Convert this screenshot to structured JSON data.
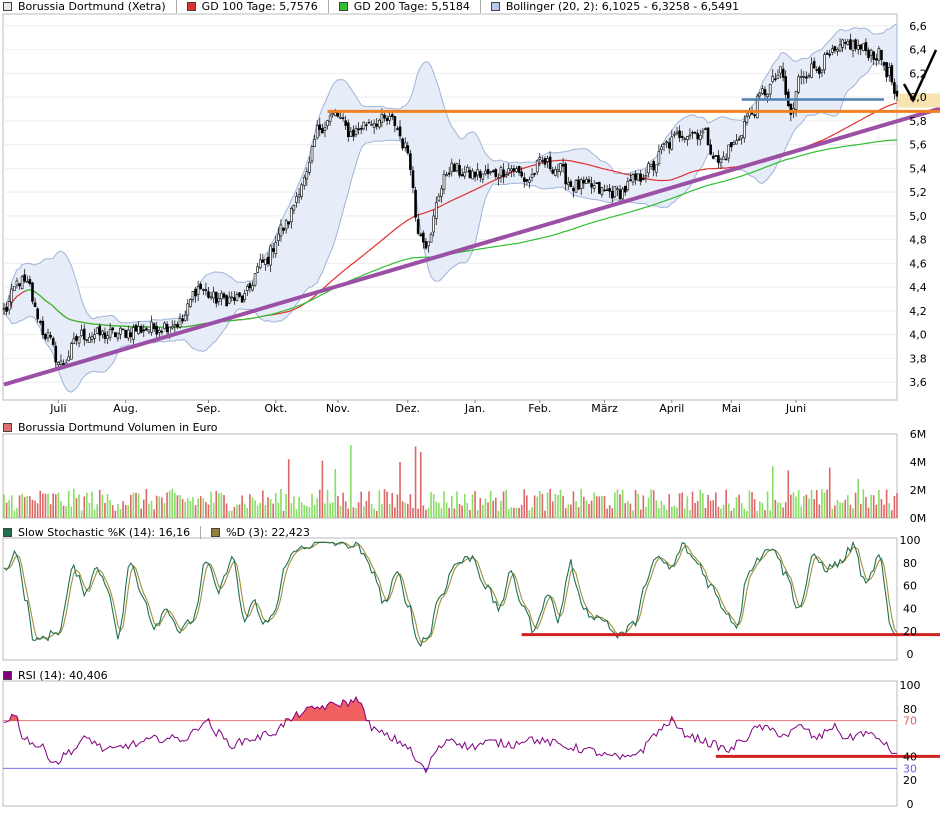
{
  "main_legend": [
    {
      "text": "Borussia Dortmund (Xetra)",
      "color": "#e8e8e8"
    },
    {
      "text": "GD 100 Tage: 5,7576",
      "color": "#e03030"
    },
    {
      "text": "GD 200 Tage: 5,5184",
      "color": "#30c030"
    },
    {
      "text": "Bollinger (20, 2): 6,1025 - 6,3258 - 6,5491",
      "color": "#b8c8e8"
    }
  ],
  "volume_legend": {
    "text": "Borussia Dortmund Volumen in Euro",
    "color": "#e07070"
  },
  "stoch_legend": [
    {
      "text": "Slow Stochastic %K (14): 16,16",
      "color": "#207050"
    },
    {
      "text": "%D (3): 22,423",
      "color": "#908040"
    }
  ],
  "rsi_legend": {
    "text": "RSI (14): 40,406",
    "color": "#800080"
  },
  "chart_data": [
    {
      "type": "candlestick",
      "title": "Borussia Dortmund (Xetra)",
      "x_ticks": [
        "Juli",
        "Aug.",
        "Sep.",
        "Okt.",
        "Nov.",
        "Dez.",
        "Jan.",
        "Feb.",
        "März",
        "April",
        "Mai",
        "Juni"
      ],
      "y_ticks": [
        "3,6",
        "3,8",
        "4,0",
        "4,2",
        "4,4",
        "4,6",
        "4,8",
        "5,0",
        "5,2",
        "5,4",
        "5,6",
        "5,8",
        "6,0",
        "6,2",
        "6,4",
        "6,6"
      ],
      "ylim": [
        3.45,
        6.7
      ],
      "price_anchors": [
        [
          0,
          4.2
        ],
        [
          6,
          4.45
        ],
        [
          10,
          4.4
        ],
        [
          12,
          4.2
        ],
        [
          16,
          4.0
        ],
        [
          22,
          3.75
        ],
        [
          30,
          4.0
        ],
        [
          40,
          4.0
        ],
        [
          55,
          4.05
        ],
        [
          68,
          4.1
        ],
        [
          75,
          4.4
        ],
        [
          82,
          4.3
        ],
        [
          92,
          4.3
        ],
        [
          100,
          4.6
        ],
        [
          108,
          4.9
        ],
        [
          116,
          5.3
        ],
        [
          122,
          5.75
        ],
        [
          128,
          5.85
        ],
        [
          134,
          5.7
        ],
        [
          142,
          5.8
        ],
        [
          150,
          5.8
        ],
        [
          156,
          5.55
        ],
        [
          160,
          4.9
        ],
        [
          164,
          4.75
        ],
        [
          168,
          5.2
        ],
        [
          172,
          5.4
        ],
        [
          180,
          5.35
        ],
        [
          188,
          5.35
        ],
        [
          196,
          5.4
        ],
        [
          202,
          5.3
        ],
        [
          208,
          5.45
        ],
        [
          214,
          5.4
        ],
        [
          220,
          5.25
        ],
        [
          226,
          5.25
        ],
        [
          232,
          5.2
        ],
        [
          238,
          5.2
        ],
        [
          244,
          5.3
        ],
        [
          250,
          5.4
        ],
        [
          256,
          5.6
        ],
        [
          262,
          5.7
        ],
        [
          270,
          5.7
        ],
        [
          276,
          5.45
        ],
        [
          282,
          5.6
        ],
        [
          288,
          5.85
        ],
        [
          294,
          6.05
        ],
        [
          300,
          6.2
        ],
        [
          304,
          5.85
        ],
        [
          308,
          6.2
        ],
        [
          314,
          6.25
        ],
        [
          320,
          6.35
        ],
        [
          326,
          6.45
        ],
        [
          332,
          6.4
        ],
        [
          338,
          6.35
        ],
        [
          342,
          6.2
        ],
        [
          345,
          5.95
        ]
      ],
      "bollinger": {
        "period": 20,
        "k": 2,
        "lower": 6.1025,
        "middle": 6.3258,
        "upper": 6.5491
      },
      "sma100_last": 5.7576,
      "sma200_last": 5.5184,
      "trendline": {
        "from": [
          0,
          3.58
        ],
        "to": [
          345,
          5.82
        ],
        "color": "#9b4fa5"
      },
      "horizontal_lines": [
        {
          "y": 5.88,
          "color": "#f08020",
          "from_index": 125,
          "to_index": 345
        },
        {
          "y": 5.98,
          "color": "#5080b0",
          "from_index": 285,
          "to_index": 340
        }
      ],
      "check_mark_color": "#000000"
    },
    {
      "type": "bar",
      "title": "Borussia Dortmund Volumen in Euro",
      "y_ticks": [
        "0M",
        "2M",
        "4M",
        "6M"
      ],
      "ylim": [
        0,
        6
      ],
      "up_color": "#88dd66",
      "down_color": "#dd6666",
      "spikes": [
        [
          110,
          4.2
        ],
        [
          123,
          4.1
        ],
        [
          128,
          3.5
        ],
        [
          134,
          5.2
        ],
        [
          153,
          4.0
        ],
        [
          159,
          5.1
        ],
        [
          161,
          4.7
        ],
        [
          297,
          3.7
        ],
        [
          303,
          3.4
        ],
        [
          319,
          3.6
        ],
        [
          330,
          2.8
        ]
      ]
    },
    {
      "type": "line",
      "title": "Slow Stochastic",
      "series": [
        {
          "name": "Slow Stochastic %K (14)",
          "last": 16.16,
          "color": "#207050"
        },
        {
          "name": "%D (3)",
          "last": 22.423,
          "color": "#a09040"
        }
      ],
      "y_ticks": [
        "0",
        "20",
        "40",
        "60",
        "80",
        "100"
      ],
      "ylim": [
        0,
        100
      ],
      "anchors": [
        [
          0,
          75
        ],
        [
          5,
          90
        ],
        [
          8,
          50
        ],
        [
          12,
          10
        ],
        [
          16,
          15
        ],
        [
          21,
          20
        ],
        [
          27,
          75
        ],
        [
          31,
          55
        ],
        [
          36,
          75
        ],
        [
          40,
          60
        ],
        [
          44,
          15
        ],
        [
          49,
          80
        ],
        [
          53,
          55
        ],
        [
          58,
          25
        ],
        [
          63,
          40
        ],
        [
          68,
          20
        ],
        [
          73,
          30
        ],
        [
          78,
          80
        ],
        [
          83,
          55
        ],
        [
          88,
          85
        ],
        [
          93,
          30
        ],
        [
          97,
          45
        ],
        [
          100,
          25
        ],
        [
          104,
          35
        ],
        [
          110,
          85
        ],
        [
          116,
          95
        ],
        [
          124,
          98
        ],
        [
          130,
          97
        ],
        [
          136,
          95
        ],
        [
          142,
          75
        ],
        [
          147,
          45
        ],
        [
          152,
          70
        ],
        [
          156,
          45
        ],
        [
          160,
          10
        ],
        [
          164,
          15
        ],
        [
          168,
          50
        ],
        [
          175,
          80
        ],
        [
          181,
          85
        ],
        [
          186,
          60
        ],
        [
          191,
          40
        ],
        [
          196,
          70
        ],
        [
          200,
          45
        ],
        [
          205,
          20
        ],
        [
          210,
          55
        ],
        [
          214,
          30
        ],
        [
          219,
          80
        ],
        [
          222,
          50
        ],
        [
          226,
          35
        ],
        [
          232,
          30
        ],
        [
          237,
          15
        ],
        [
          243,
          25
        ],
        [
          248,
          60
        ],
        [
          252,
          85
        ],
        [
          258,
          75
        ],
        [
          262,
          95
        ],
        [
          268,
          80
        ],
        [
          273,
          60
        ],
        [
          278,
          40
        ],
        [
          283,
          25
        ],
        [
          288,
          75
        ],
        [
          292,
          85
        ],
        [
          297,
          95
        ],
        [
          302,
          70
        ],
        [
          307,
          40
        ],
        [
          313,
          85
        ],
        [
          318,
          75
        ],
        [
          323,
          80
        ],
        [
          328,
          95
        ],
        [
          333,
          60
        ],
        [
          338,
          85
        ],
        [
          343,
          20
        ],
        [
          345,
          16
        ]
      ],
      "support_line": {
        "y": 17,
        "color": "#d02020",
        "from_index": 200
      }
    },
    {
      "type": "line",
      "title": "RSI (14)",
      "series": [
        {
          "name": "RSI (14)",
          "last": 40.406,
          "color": "#800080"
        }
      ],
      "y_ticks": [
        "0",
        "20",
        "30",
        "40",
        "70",
        "80",
        "100"
      ],
      "ylim": [
        0,
        100
      ],
      "reference_lines": [
        {
          "y": 70,
          "color": "#e06060"
        },
        {
          "y": 30,
          "color": "#6060e0"
        }
      ],
      "overbought_fill": "#f06060",
      "oversold_fill": "#6060e0",
      "anchors": [
        [
          0,
          70
        ],
        [
          4,
          75
        ],
        [
          8,
          55
        ],
        [
          14,
          48
        ],
        [
          20,
          35
        ],
        [
          26,
          45
        ],
        [
          32,
          55
        ],
        [
          40,
          45
        ],
        [
          50,
          50
        ],
        [
          60,
          55
        ],
        [
          70,
          55
        ],
        [
          78,
          70
        ],
        [
          82,
          60
        ],
        [
          88,
          50
        ],
        [
          96,
          55
        ],
        [
          104,
          60
        ],
        [
          110,
          70
        ],
        [
          116,
          78
        ],
        [
          124,
          82
        ],
        [
          132,
          85
        ],
        [
          138,
          88
        ],
        [
          140,
          68
        ],
        [
          145,
          60
        ],
        [
          150,
          55
        ],
        [
          155,
          50
        ],
        [
          160,
          35
        ],
        [
          163,
          28
        ],
        [
          167,
          45
        ],
        [
          172,
          55
        ],
        [
          180,
          48
        ],
        [
          188,
          52
        ],
        [
          196,
          50
        ],
        [
          202,
          55
        ],
        [
          210,
          52
        ],
        [
          218,
          48
        ],
        [
          226,
          45
        ],
        [
          234,
          40
        ],
        [
          240,
          38
        ],
        [
          246,
          45
        ],
        [
          252,
          60
        ],
        [
          258,
          70
        ],
        [
          262,
          60
        ],
        [
          268,
          55
        ],
        [
          274,
          50
        ],
        [
          280,
          45
        ],
        [
          286,
          55
        ],
        [
          292,
          65
        ],
        [
          296,
          62
        ],
        [
          302,
          58
        ],
        [
          308,
          65
        ],
        [
          314,
          55
        ],
        [
          320,
          65
        ],
        [
          326,
          55
        ],
        [
          332,
          60
        ],
        [
          338,
          55
        ],
        [
          343,
          45
        ],
        [
          345,
          40
        ]
      ],
      "support_line": {
        "y": 40,
        "color": "#d02020",
        "from_index": 275
      }
    }
  ]
}
